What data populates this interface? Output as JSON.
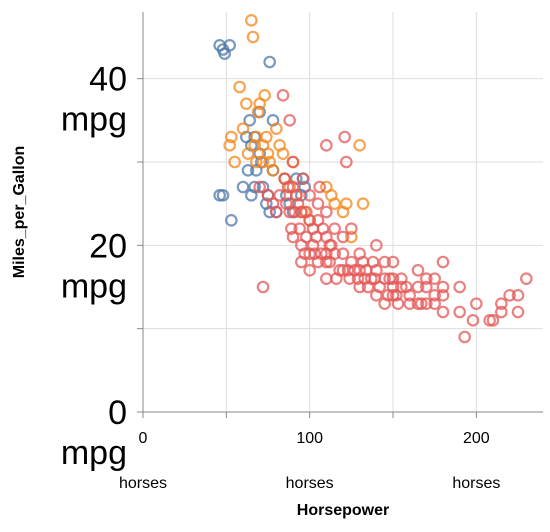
{
  "chart_data": {
    "type": "scatter",
    "xlabel": "Horsepower",
    "ylabel": "Miles_per_Gallon",
    "xlim": [
      0,
      240
    ],
    "ylim": [
      0,
      48
    ],
    "x_ticks": [
      {
        "value": 0,
        "line1": "0",
        "line2": "horses"
      },
      {
        "value": 100,
        "line1": "100",
        "line2": "horses"
      },
      {
        "value": 200,
        "line1": "200",
        "line2": "horses"
      }
    ],
    "y_ticks": [
      {
        "value": 0,
        "line1": "0",
        "line2": "mpg"
      },
      {
        "value": 20,
        "line1": "20",
        "line2": "mpg"
      },
      {
        "value": 40,
        "line1": "40",
        "line2": "mpg"
      }
    ],
    "grid": true,
    "legend": "none",
    "colors": {
      "series_a": "#4c78a8",
      "series_b": "#f58518",
      "series_c": "#e45756"
    },
    "series": [
      {
        "color": "#4c78a8",
        "points": [
          [
            46,
            44
          ],
          [
            48,
            43.5
          ],
          [
            49,
            43
          ],
          [
            52,
            44
          ],
          [
            46,
            26
          ],
          [
            48,
            26
          ],
          [
            53,
            23
          ],
          [
            60,
            27
          ],
          [
            63,
            29
          ],
          [
            65,
            32
          ],
          [
            65,
            26
          ],
          [
            67,
            27
          ],
          [
            67,
            33
          ],
          [
            68,
            29
          ],
          [
            70,
            36
          ],
          [
            70,
            31
          ],
          [
            71,
            30
          ],
          [
            72,
            27
          ],
          [
            74,
            25
          ],
          [
            75,
            26
          ],
          [
            76,
            24
          ],
          [
            76,
            42
          ],
          [
            78,
            35
          ],
          [
            78,
            29
          ],
          [
            80,
            24
          ],
          [
            85,
            28
          ],
          [
            86,
            26
          ],
          [
            88,
            25
          ],
          [
            90,
            24
          ],
          [
            92,
            28
          ],
          [
            95,
            26
          ],
          [
            96,
            28
          ],
          [
            97,
            27
          ],
          [
            62,
            33
          ],
          [
            64,
            35
          ]
        ]
      },
      {
        "color": "#f58518",
        "points": [
          [
            52,
            32
          ],
          [
            53,
            33
          ],
          [
            55,
            30
          ],
          [
            58,
            39
          ],
          [
            60,
            34
          ],
          [
            62,
            37
          ],
          [
            63,
            31
          ],
          [
            65,
            47
          ],
          [
            66,
            45
          ],
          [
            67,
            32
          ],
          [
            68,
            30
          ],
          [
            68,
            33
          ],
          [
            69,
            36
          ],
          [
            70,
            37
          ],
          [
            72,
            32
          ],
          [
            72,
            30
          ],
          [
            73,
            38
          ],
          [
            74,
            33
          ],
          [
            75,
            31
          ],
          [
            76,
            30
          ],
          [
            78,
            29
          ],
          [
            80,
            34
          ],
          [
            82,
            32
          ],
          [
            84,
            31
          ],
          [
            85,
            28
          ],
          [
            88,
            27
          ],
          [
            90,
            30
          ],
          [
            92,
            26
          ],
          [
            95,
            24
          ],
          [
            97,
            24
          ],
          [
            100,
            23
          ],
          [
            110,
            27
          ],
          [
            115,
            25
          ],
          [
            120,
            24
          ],
          [
            122,
            25
          ],
          [
            125,
            21
          ],
          [
            132,
            25
          ],
          [
            113,
            26
          ],
          [
            130,
            32
          ]
        ]
      },
      {
        "color": "#e45756",
        "points": [
          [
            70,
            27
          ],
          [
            72,
            15
          ],
          [
            75,
            26
          ],
          [
            78,
            25
          ],
          [
            80,
            24
          ],
          [
            82,
            26
          ],
          [
            84,
            38
          ],
          [
            85,
            28
          ],
          [
            86,
            25
          ],
          [
            87,
            27
          ],
          [
            88,
            24
          ],
          [
            88,
            35
          ],
          [
            89,
            22
          ],
          [
            90,
            21
          ],
          [
            90,
            27
          ],
          [
            90,
            30
          ],
          [
            91,
            24
          ],
          [
            92,
            26
          ],
          [
            93,
            25
          ],
          [
            94,
            22
          ],
          [
            95,
            20
          ],
          [
            95,
            18
          ],
          [
            95,
            24
          ],
          [
            96,
            28
          ],
          [
            97,
            19
          ],
          [
            98,
            21
          ],
          [
            98,
            24
          ],
          [
            100,
            17
          ],
          [
            100,
            19
          ],
          [
            100,
            23
          ],
          [
            100,
            26
          ],
          [
            102,
            22
          ],
          [
            102,
            20
          ],
          [
            103,
            19
          ],
          [
            104,
            21
          ],
          [
            105,
            18
          ],
          [
            105,
            23
          ],
          [
            105,
            25
          ],
          [
            106,
            27
          ],
          [
            107,
            19
          ],
          [
            108,
            22
          ],
          [
            110,
            19
          ],
          [
            110,
            18
          ],
          [
            110,
            21
          ],
          [
            110,
            24
          ],
          [
            110,
            16
          ],
          [
            110,
            32
          ],
          [
            112,
            20
          ],
          [
            112,
            18
          ],
          [
            113,
            20
          ],
          [
            115,
            19
          ],
          [
            115,
            22
          ],
          [
            116,
            16
          ],
          [
            118,
            17
          ],
          [
            120,
            17
          ],
          [
            120,
            19
          ],
          [
            120,
            21
          ],
          [
            121,
            33
          ],
          [
            122,
            30
          ],
          [
            123,
            17
          ],
          [
            124,
            16
          ],
          [
            125,
            18
          ],
          [
            125,
            22
          ],
          [
            127,
            17
          ],
          [
            129,
            16
          ],
          [
            130,
            15
          ],
          [
            130,
            17
          ],
          [
            130,
            19
          ],
          [
            132,
            18
          ],
          [
            133,
            16
          ],
          [
            134,
            17
          ],
          [
            135,
            15
          ],
          [
            137,
            16
          ],
          [
            138,
            18
          ],
          [
            139,
            16
          ],
          [
            140,
            14
          ],
          [
            140,
            17
          ],
          [
            140,
            20
          ],
          [
            142,
            15
          ],
          [
            145,
            13
          ],
          [
            145,
            16
          ],
          [
            145,
            18
          ],
          [
            147,
            14
          ],
          [
            148,
            16
          ],
          [
            150,
            14
          ],
          [
            150,
            15
          ],
          [
            150,
            16
          ],
          [
            150,
            18
          ],
          [
            152,
            14
          ],
          [
            153,
            13
          ],
          [
            155,
            15
          ],
          [
            155,
            16
          ],
          [
            158,
            15
          ],
          [
            160,
            13
          ],
          [
            160,
            14
          ],
          [
            165,
            13
          ],
          [
            165,
            15
          ],
          [
            165,
            17
          ],
          [
            167,
            13
          ],
          [
            170,
            13
          ],
          [
            170,
            15
          ],
          [
            170,
            16
          ],
          [
            175,
            13
          ],
          [
            175,
            14
          ],
          [
            175,
            16
          ],
          [
            180,
            12
          ],
          [
            180,
            14
          ],
          [
            180,
            15
          ],
          [
            180,
            18
          ],
          [
            190,
            12
          ],
          [
            190,
            15
          ],
          [
            193,
            9
          ],
          [
            198,
            11
          ],
          [
            200,
            13
          ],
          [
            208,
            11
          ],
          [
            210,
            11
          ],
          [
            215,
            13
          ],
          [
            215,
            12
          ],
          [
            220,
            14
          ],
          [
            225,
            14
          ],
          [
            230,
            16
          ],
          [
            225,
            12
          ]
        ]
      }
    ]
  }
}
